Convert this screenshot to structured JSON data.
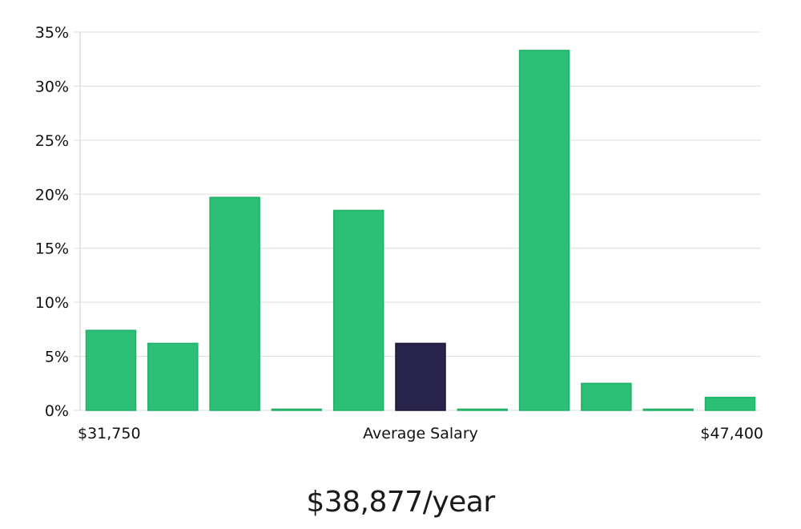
{
  "chart_data": {
    "type": "bar",
    "title": "$38,877/year",
    "xlabel": "Average Salary",
    "ylabel": "",
    "x_min_label": "$31,750",
    "x_max_label": "$47,400",
    "ylim": [
      0,
      35
    ],
    "yticks": [
      0,
      5,
      10,
      15,
      20,
      25,
      30,
      35
    ],
    "ytick_labels": [
      "0%",
      "5%",
      "10%",
      "15%",
      "20%",
      "25%",
      "30%",
      "35%"
    ],
    "values": [
      7.4,
      6.2,
      19.7,
      0,
      18.5,
      6.2,
      0,
      33.3,
      2.5,
      0,
      1.2
    ],
    "highlight_index": 5,
    "grid": true,
    "colors": {
      "bar": "#2bbf77",
      "bar_stroke": "#20b068",
      "highlight": "#28234a",
      "grid": "#dddddd",
      "axis": "#cccccc",
      "text": "#111111"
    }
  }
}
